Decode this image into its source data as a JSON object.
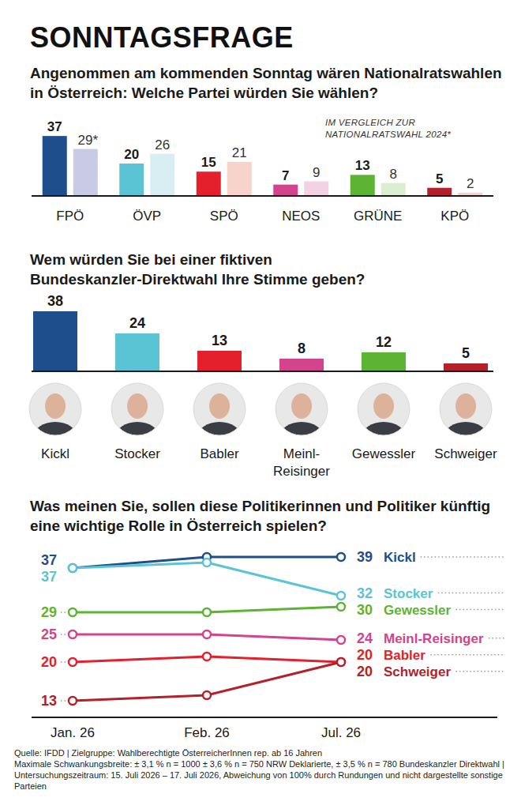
{
  "header": {
    "title": "SONNTAGSFRAGE"
  },
  "chart_data": [
    {
      "type": "bar",
      "title": "Angenommen am kommenden Sonntag wären Nationalratswahlen in Österreich: Welche Partei würden Sie wählen?",
      "annotation": "IM VERGLEICH ZUR NATIONALRATSWAHL 2024*",
      "categories": [
        "FPÖ",
        "ÖVP",
        "SPÖ",
        "NEOS",
        "GRÜNE",
        "KPÖ"
      ],
      "series": [
        {
          "values": [
            37,
            20,
            15,
            7,
            13,
            5
          ],
          "colors": [
            "#1f4e8c",
            "#5bc4d4",
            "#e3202b",
            "#d2448c",
            "#5db332",
            "#b3222a"
          ]
        },
        {
          "values": [
            29,
            26,
            21,
            9,
            8,
            2
          ],
          "value_labels": [
            "29*",
            "26",
            "21",
            "9",
            "8",
            "2"
          ],
          "colors": [
            "#c8cbe3",
            "#d9eef2",
            "#f7d3cc",
            "#f3d2e3",
            "#dbeed2",
            "#f2d3d3"
          ]
        }
      ],
      "ylim": [
        0,
        40
      ],
      "data_labels": true,
      "tick_labels": "x",
      "grid": false
    },
    {
      "type": "bar",
      "title": "Wem würden Sie bei einer fiktiven Bundeskanzler-Direktwahl Ihre Stimme geben?",
      "categories": [
        "Kickl",
        "Stocker",
        "Babler",
        "Meinl-Reisinger",
        "Gewessler",
        "Schweiger"
      ],
      "values": [
        38,
        24,
        13,
        8,
        12,
        5
      ],
      "colors": [
        "#1f4e8c",
        "#5bc4d4",
        "#e3202b",
        "#d2448c",
        "#5db332",
        "#b3222a"
      ],
      "ylim": [
        0,
        40
      ],
      "data_labels": true,
      "tick_labels": "x",
      "grid": false
    },
    {
      "type": "line",
      "title": "Was meinen Sie, sollen diese Politikerinnen und Politiker künftig eine wichtige Rolle in Österreich spielen?",
      "categories": [
        "Jan. 26",
        "Feb. 26",
        "Jul. 26"
      ],
      "series": [
        {
          "name": "Kickl",
          "color": "#1f4e8c",
          "values": [
            37,
            39,
            39
          ]
        },
        {
          "name": "Stocker",
          "color": "#5bc4d4",
          "values": [
            37,
            38,
            32
          ]
        },
        {
          "name": "Gewessler",
          "color": "#5db332",
          "values": [
            29,
            29,
            30
          ]
        },
        {
          "name": "Meinl-Reisinger",
          "color": "#d2448c",
          "values": [
            25,
            25,
            24
          ]
        },
        {
          "name": "Babler",
          "color": "#e3202b",
          "values": [
            20,
            21,
            20
          ]
        },
        {
          "name": "Schweiger",
          "color": "#b3222a",
          "values": [
            13,
            14,
            20
          ]
        }
      ],
      "ylim": [
        10,
        40
      ],
      "data_labels": true,
      "marker": "circle",
      "tick_labels": "x",
      "grid": false
    }
  ],
  "source": [
    "Quelle: IFDD | Zielgruppe: Wahlberechtigte ÖsterreicherInnen rep. ab 16 Jahren",
    "Maximale Schwankungsbreite: ± 3,1 % n = 1000 ± 3,6 % n = 750 NRW Deklarierte, ± 3,5 % n = 780 Bundeskanzler Direktwahl | Untersuchungszeitraum: 15. Juli 2026 – 17. Juli 2026, Abweichung von 100% durch Rundungen und nicht dargestellte sonstige Parteien"
  ]
}
